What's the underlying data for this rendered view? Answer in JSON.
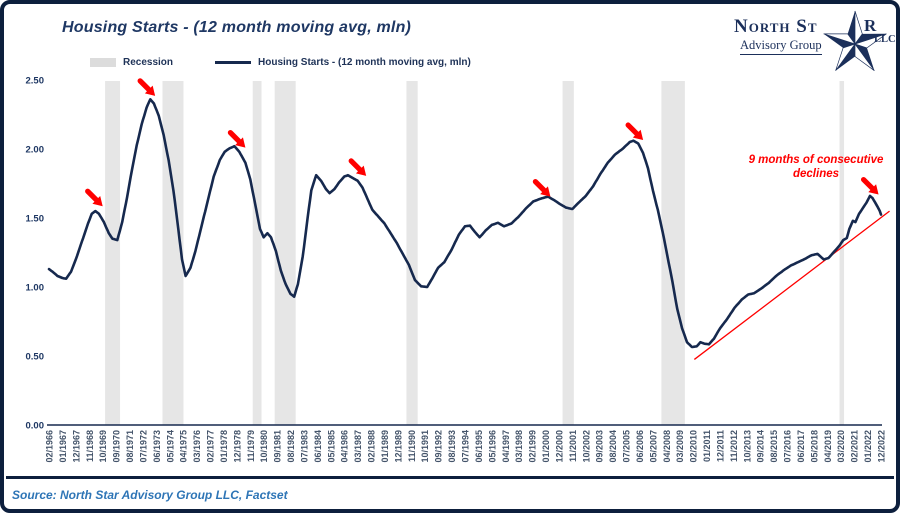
{
  "header": {
    "title": "Housing Starts - (12 month moving avg, mln)"
  },
  "legend": {
    "recession_label": "Recession",
    "series_label": "Housing Starts - (12 month moving avg, mln)"
  },
  "logo": {
    "name_left": "North St",
    "name_right": "R",
    "subtitle": "Advisory Group",
    "suffix": "LLC"
  },
  "annotation": {
    "line1": "9 months of consecutive",
    "line2": "declines"
  },
  "source": {
    "text": "Source: North Star Advisory Group LLC, Factset"
  },
  "chart_data": {
    "type": "line",
    "title": "Housing Starts - (12 month moving avg, mln)",
    "unit": "mln",
    "interpolation": "linear-monthly",
    "x_axis": {
      "first": "02/1966",
      "last": "12/2022",
      "tick_interval_months": 11,
      "tick_labels": [
        "02/1966",
        "01/1967",
        "12/1967",
        "11/1968",
        "10/1969",
        "09/1970",
        "08/1971",
        "07/1972",
        "06/1973",
        "05/1974",
        "04/1975",
        "03/1976",
        "02/1977",
        "01/1978",
        "12/1978",
        "11/1979",
        "10/1980",
        "09/1981",
        "08/1982",
        "07/1983",
        "06/1984",
        "05/1985",
        "04/1986",
        "03/1987",
        "02/1988",
        "01/1989",
        "12/1989",
        "11/1990",
        "10/1991",
        "09/1992",
        "08/1993",
        "07/1994",
        "06/1995",
        "05/1996",
        "04/1997",
        "03/1998",
        "02/1999",
        "01/2000",
        "12/2000",
        "11/2001",
        "10/2002",
        "09/2003",
        "08/2004",
        "07/2005",
        "06/2006",
        "05/2007",
        "04/2008",
        "03/2009",
        "02/2010",
        "01/2011",
        "12/2011",
        "11/2012",
        "10/2013",
        "09/2014",
        "08/2015",
        "07/2016",
        "06/2017",
        "05/2018",
        "04/2019",
        "03/2020",
        "02/2021",
        "01/2022",
        "12/2022"
      ]
    },
    "y_axis": {
      "range": [
        0,
        2.5
      ],
      "ticks": [
        {
          "label": "2.50",
          "value": 2.5
        },
        {
          "label": "2.00",
          "value": 2.0
        },
        {
          "label": "1.50",
          "value": 1.5
        },
        {
          "label": "1.00",
          "value": 1.0
        },
        {
          "label": "0.50",
          "value": 0.5
        },
        {
          "label": "0.00",
          "value": 0.0
        }
      ]
    },
    "series": [
      {
        "name": "Housing Starts - (12 month moving avg, mln)",
        "keypoints": [
          [
            "02/1966",
            1.13
          ],
          [
            "05/1966",
            1.11
          ],
          [
            "09/1966",
            1.08
          ],
          [
            "01/1967",
            1.065
          ],
          [
            "04/1967",
            1.06
          ],
          [
            "08/1967",
            1.11
          ],
          [
            "12/1967",
            1.2
          ],
          [
            "05/1968",
            1.33
          ],
          [
            "10/1968",
            1.46
          ],
          [
            "01/1969",
            1.53
          ],
          [
            "04/1969",
            1.55
          ],
          [
            "07/1969",
            1.53
          ],
          [
            "11/1969",
            1.47
          ],
          [
            "03/1970",
            1.39
          ],
          [
            "06/1970",
            1.35
          ],
          [
            "10/1970",
            1.34
          ],
          [
            "02/1971",
            1.47
          ],
          [
            "06/1971",
            1.65
          ],
          [
            "10/1971",
            1.85
          ],
          [
            "02/1972",
            2.03
          ],
          [
            "06/1972",
            2.18
          ],
          [
            "10/1972",
            2.3
          ],
          [
            "01/1973",
            2.36
          ],
          [
            "04/1973",
            2.33
          ],
          [
            "08/1973",
            2.24
          ],
          [
            "12/1973",
            2.1
          ],
          [
            "04/1974",
            1.92
          ],
          [
            "08/1974",
            1.7
          ],
          [
            "12/1974",
            1.42
          ],
          [
            "03/1975",
            1.2
          ],
          [
            "06/1975",
            1.08
          ],
          [
            "10/1975",
            1.14
          ],
          [
            "02/1976",
            1.26
          ],
          [
            "07/1976",
            1.44
          ],
          [
            "12/1976",
            1.62
          ],
          [
            "05/1977",
            1.8
          ],
          [
            "10/1977",
            1.92
          ],
          [
            "02/1978",
            1.98
          ],
          [
            "06/1978",
            2.005
          ],
          [
            "10/1978",
            2.02
          ],
          [
            "02/1979",
            1.98
          ],
          [
            "07/1979",
            1.9
          ],
          [
            "11/1979",
            1.78
          ],
          [
            "03/1980",
            1.6
          ],
          [
            "07/1980",
            1.42
          ],
          [
            "10/1980",
            1.36
          ],
          [
            "01/1981",
            1.39
          ],
          [
            "04/1981",
            1.36
          ],
          [
            "08/1981",
            1.26
          ],
          [
            "12/1981",
            1.12
          ],
          [
            "04/1982",
            1.02
          ],
          [
            "08/1982",
            0.95
          ],
          [
            "11/1982",
            0.93
          ],
          [
            "02/1983",
            1.02
          ],
          [
            "06/1983",
            1.22
          ],
          [
            "10/1983",
            1.5
          ],
          [
            "01/1984",
            1.7
          ],
          [
            "05/1984",
            1.81
          ],
          [
            "09/1984",
            1.77
          ],
          [
            "01/1985",
            1.71
          ],
          [
            "04/1985",
            1.68
          ],
          [
            "08/1985",
            1.71
          ],
          [
            "12/1985",
            1.76
          ],
          [
            "04/1986",
            1.8
          ],
          [
            "07/1986",
            1.81
          ],
          [
            "11/1986",
            1.79
          ],
          [
            "03/1987",
            1.77
          ],
          [
            "07/1987",
            1.72
          ],
          [
            "11/1987",
            1.64
          ],
          [
            "03/1988",
            1.56
          ],
          [
            "08/1988",
            1.51
          ],
          [
            "01/1989",
            1.46
          ],
          [
            "06/1989",
            1.39
          ],
          [
            "11/1989",
            1.32
          ],
          [
            "04/1990",
            1.24
          ],
          [
            "09/1990",
            1.16
          ],
          [
            "02/1991",
            1.05
          ],
          [
            "07/1991",
            1.005
          ],
          [
            "12/1991",
            1.0
          ],
          [
            "04/1992",
            1.06
          ],
          [
            "09/1992",
            1.14
          ],
          [
            "02/1993",
            1.18
          ],
          [
            "08/1993",
            1.27
          ],
          [
            "02/1994",
            1.38
          ],
          [
            "07/1994",
            1.44
          ],
          [
            "11/1994",
            1.445
          ],
          [
            "03/1995",
            1.4
          ],
          [
            "07/1995",
            1.36
          ],
          [
            "12/1995",
            1.41
          ],
          [
            "05/1996",
            1.45
          ],
          [
            "10/1996",
            1.465
          ],
          [
            "03/1997",
            1.44
          ],
          [
            "09/1997",
            1.46
          ],
          [
            "03/1998",
            1.51
          ],
          [
            "09/1998",
            1.57
          ],
          [
            "03/1999",
            1.62
          ],
          [
            "09/1999",
            1.64
          ],
          [
            "03/2000",
            1.655
          ],
          [
            "08/2000",
            1.63
          ],
          [
            "01/2001",
            1.6
          ],
          [
            "06/2001",
            1.575
          ],
          [
            "11/2001",
            1.565
          ],
          [
            "04/2002",
            1.61
          ],
          [
            "10/2002",
            1.66
          ],
          [
            "04/2003",
            1.73
          ],
          [
            "10/2003",
            1.82
          ],
          [
            "04/2004",
            1.9
          ],
          [
            "10/2004",
            1.96
          ],
          [
            "04/2005",
            2.0
          ],
          [
            "10/2005",
            2.05
          ],
          [
            "01/2006",
            2.06
          ],
          [
            "05/2006",
            2.04
          ],
          [
            "09/2006",
            1.97
          ],
          [
            "01/2007",
            1.86
          ],
          [
            "05/2007",
            1.7
          ],
          [
            "09/2007",
            1.56
          ],
          [
            "01/2008",
            1.4
          ],
          [
            "05/2008",
            1.22
          ],
          [
            "09/2008",
            1.04
          ],
          [
            "01/2009",
            0.84
          ],
          [
            "05/2009",
            0.7
          ],
          [
            "09/2009",
            0.6
          ],
          [
            "01/2010",
            0.565
          ],
          [
            "05/2010",
            0.57
          ],
          [
            "08/2010",
            0.6
          ],
          [
            "11/2010",
            0.59
          ],
          [
            "03/2011",
            0.585
          ],
          [
            "07/2011",
            0.625
          ],
          [
            "12/2011",
            0.7
          ],
          [
            "06/2012",
            0.77
          ],
          [
            "12/2012",
            0.85
          ],
          [
            "06/2013",
            0.91
          ],
          [
            "11/2013",
            0.945
          ],
          [
            "04/2014",
            0.955
          ],
          [
            "10/2014",
            0.99
          ],
          [
            "04/2015",
            1.03
          ],
          [
            "10/2015",
            1.08
          ],
          [
            "04/2016",
            1.12
          ],
          [
            "10/2016",
            1.155
          ],
          [
            "04/2017",
            1.18
          ],
          [
            "10/2017",
            1.205
          ],
          [
            "03/2018",
            1.23
          ],
          [
            "08/2018",
            1.24
          ],
          [
            "01/2019",
            1.2
          ],
          [
            "05/2019",
            1.21
          ],
          [
            "10/2019",
            1.26
          ],
          [
            "02/2020",
            1.3
          ],
          [
            "05/2020",
            1.34
          ],
          [
            "08/2020",
            1.355
          ],
          [
            "10/2020",
            1.42
          ],
          [
            "01/2021",
            1.48
          ],
          [
            "03/2021",
            1.47
          ],
          [
            "06/2021",
            1.53
          ],
          [
            "09/2021",
            1.57
          ],
          [
            "12/2021",
            1.61
          ],
          [
            "03/2022",
            1.66
          ],
          [
            "05/2022",
            1.645
          ],
          [
            "07/2022",
            1.615
          ],
          [
            "09/2022",
            1.585
          ],
          [
            "11/2022",
            1.55
          ],
          [
            "12/2022",
            1.525
          ]
        ]
      }
    ],
    "recessions": [
      {
        "start": "12/1969",
        "end": "11/1970"
      },
      {
        "start": "11/1973",
        "end": "03/1975"
      },
      {
        "start": "01/1980",
        "end": "07/1980"
      },
      {
        "start": "07/1981",
        "end": "11/1982"
      },
      {
        "start": "07/1990",
        "end": "03/1991"
      },
      {
        "start": "03/2001",
        "end": "11/2001"
      },
      {
        "start": "12/2007",
        "end": "06/2009"
      },
      {
        "start": "02/2020",
        "end": "04/2020"
      }
    ],
    "arrows": [
      {
        "date": "10/1969",
        "value": 1.585
      },
      {
        "date": "05/1973",
        "value": 2.385
      },
      {
        "date": "07/1979",
        "value": 2.01
      },
      {
        "date": "10/1987",
        "value": 1.805
      },
      {
        "date": "05/2000",
        "value": 1.655
      },
      {
        "date": "09/2006",
        "value": 2.065
      },
      {
        "date": "10/2022",
        "value": 1.67
      }
    ],
    "trendline": {
      "start": {
        "date": "03/2010",
        "value": 0.475
      },
      "end": {
        "date": "07/2023",
        "value": 1.55
      }
    },
    "colors": {
      "line": "#16294e",
      "recession_band": "#e6e6e6",
      "accent_red": "#ff0000",
      "x_tick_label": "#44546a",
      "y_tick_label": "#1f3864",
      "title": "#1f3864",
      "source": "#2e75b6",
      "frame": "#0d1f3d"
    },
    "layout": {
      "grid": false,
      "legend_position": "top-left"
    }
  }
}
